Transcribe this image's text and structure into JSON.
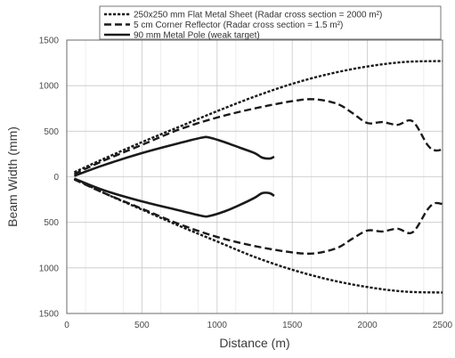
{
  "chart_data": {
    "type": "line",
    "title": "",
    "xlabel": "Distance (m)",
    "ylabel": "Beam Width (mm)",
    "xlim": [
      0,
      2500
    ],
    "ylim": [
      -1500,
      1500
    ],
    "x_ticks": [
      "0",
      "500",
      "1000",
      "1500",
      "2000",
      "2500"
    ],
    "y_ticks": [
      "1500",
      "1000",
      "500",
      "0",
      "500",
      "1000",
      "1500"
    ],
    "grid": true,
    "legend_position": "top",
    "series": [
      {
        "name": "250x250 mm Flat Metal Sheet (Radar cross section = 2000 m²)",
        "style": "dotted",
        "x": [
          50,
          250,
          500,
          750,
          1000,
          1250,
          1500,
          1750,
          2000,
          2250,
          2500
        ],
        "upper": [
          50,
          200,
          380,
          550,
          720,
          880,
          1020,
          1130,
          1210,
          1260,
          1270
        ],
        "lower": [
          -20,
          -180,
          -360,
          -540,
          -710,
          -880,
          -1020,
          -1130,
          -1210,
          -1260,
          -1270
        ]
      },
      {
        "name": "5 cm Corner Reflector (Radar cross section = 1.5 m²)",
        "style": "dashed",
        "x": [
          50,
          250,
          500,
          750,
          1000,
          1250,
          1500,
          1650,
          1800,
          1900,
          2000,
          2100,
          2200,
          2300,
          2400,
          2450,
          2500
        ],
        "upper": [
          30,
          180,
          350,
          520,
          650,
          750,
          830,
          850,
          800,
          700,
          590,
          600,
          570,
          610,
          350,
          290,
          300
        ],
        "lower": [
          -30,
          -180,
          -350,
          -520,
          -660,
          -760,
          -830,
          -840,
          -780,
          -680,
          -590,
          -600,
          -570,
          -610,
          -360,
          -290,
          -300
        ]
      },
      {
        "name": "90 mm Metal Pole (weak target)",
        "style": "solid",
        "x": [
          50,
          250,
          500,
          750,
          900,
          950,
          1050,
          1150,
          1250,
          1300,
          1350,
          1380
        ],
        "upper": [
          10,
          130,
          260,
          370,
          430,
          430,
          380,
          320,
          260,
          210,
          200,
          220
        ],
        "lower": [
          -20,
          -150,
          -270,
          -370,
          -430,
          -430,
          -380,
          -310,
          -230,
          -180,
          -180,
          -210
        ]
      }
    ]
  }
}
